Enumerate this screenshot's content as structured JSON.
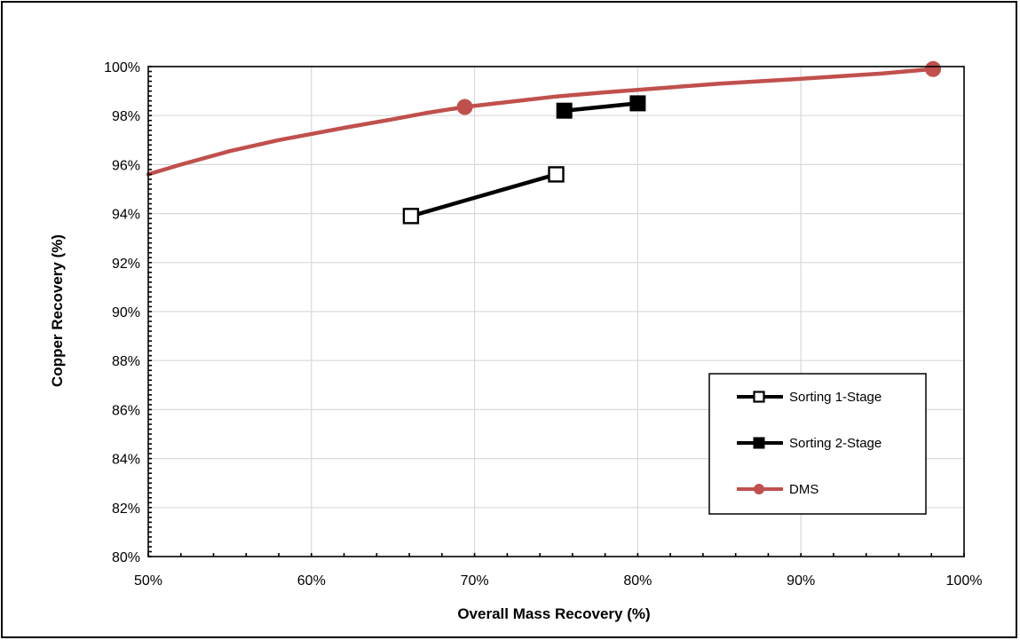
{
  "chart_data": {
    "type": "line",
    "xlabel": "Overall Mass Recovery (%)",
    "ylabel": "Copper Recovery (%)",
    "xlim": [
      50,
      100
    ],
    "ylim": [
      80,
      100
    ],
    "x_ticks": [
      "50%",
      "60%",
      "70%",
      "80%",
      "90%",
      "100%"
    ],
    "y_ticks": [
      "80%",
      "82%",
      "84%",
      "86%",
      "88%",
      "90%",
      "92%",
      "94%",
      "96%",
      "98%",
      "100%"
    ],
    "grid": true,
    "legend_position": "bottom-right",
    "series": [
      {
        "name": "Sorting 1-Stage",
        "marker": "open-square",
        "color": "#000000",
        "points": [
          [
            66.1,
            93.9
          ],
          [
            75.0,
            95.6
          ]
        ]
      },
      {
        "name": "Sorting 2-Stage",
        "marker": "filled-square",
        "color": "#000000",
        "points": [
          [
            75.5,
            98.2
          ],
          [
            80.0,
            98.5
          ]
        ]
      },
      {
        "name": "DMS",
        "marker": "circle",
        "color": "#c0504d",
        "markers": [
          [
            69.4,
            98.35
          ],
          [
            98.1,
            99.9
          ]
        ],
        "curve": [
          [
            50,
            95.6
          ],
          [
            52,
            96.0
          ],
          [
            55,
            96.55
          ],
          [
            58,
            97.0
          ],
          [
            60,
            97.25
          ],
          [
            62,
            97.5
          ],
          [
            65,
            97.85
          ],
          [
            67,
            98.1
          ],
          [
            69.4,
            98.35
          ],
          [
            72,
            98.55
          ],
          [
            75,
            98.78
          ],
          [
            78,
            98.95
          ],
          [
            80,
            99.05
          ],
          [
            85,
            99.3
          ],
          [
            90,
            99.5
          ],
          [
            95,
            99.72
          ],
          [
            98.1,
            99.9
          ]
        ]
      }
    ]
  }
}
